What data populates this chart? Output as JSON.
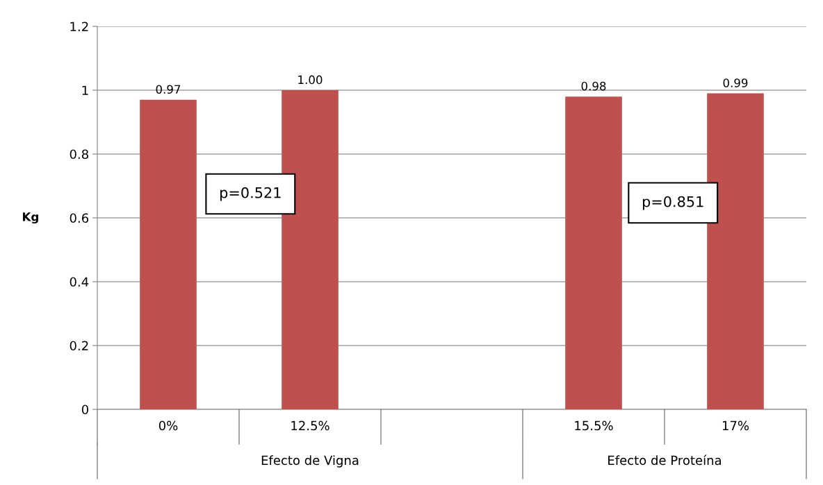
{
  "chart_data": {
    "type": "bar",
    "ylabel": "Kg",
    "categories": [
      "0%",
      "12.5%",
      null,
      "15.5%",
      "17%"
    ],
    "values": [
      0.97,
      1.0,
      null,
      0.98,
      0.99
    ],
    "value_labels": [
      "0.97",
      "1.00",
      null,
      "0.98",
      "0.99"
    ],
    "color": "#c0504d",
    "ylim": [
      0,
      1.2
    ],
    "yticks": [
      0,
      0.2,
      0.4,
      0.6,
      0.8,
      1,
      1.2
    ],
    "grid": "y",
    "annotations": [
      "p=0.521",
      "p=0.851",
      "Efecto de Vigna",
      "Efecto de Proteína"
    ]
  }
}
